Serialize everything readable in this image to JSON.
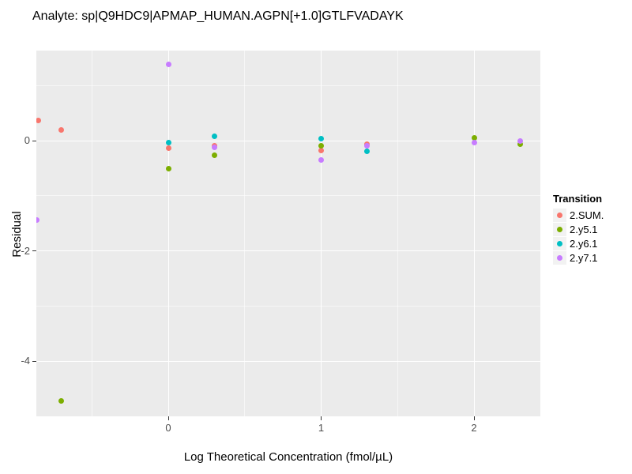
{
  "title": "Analyte: sp|Q9HDC9|APMAP_HUMAN.AGPN[+1.0]GTLFVADAYK",
  "axes": {
    "x_title": "Log Theoretical Concentration (fmol/µL)",
    "y_title": "Residual",
    "x_tick_labels": [
      "0",
      "1",
      "2"
    ],
    "y_tick_labels": [
      "0",
      "-2",
      "-4"
    ]
  },
  "legend": {
    "title": "Transition",
    "items": [
      {
        "label": "2.SUM.",
        "color": "#F8766D"
      },
      {
        "label": "2.y5.1",
        "color": "#7CAE00"
      },
      {
        "label": "2.y6.1",
        "color": "#00BFC4"
      },
      {
        "label": "2.y7.1",
        "color": "#C77CFF"
      }
    ]
  },
  "colors": {
    "panel_background": "#EBEBEB",
    "grid": "#FFFFFF",
    "legend_key_background": "#F2F2F2",
    "tick_label": "#4D4D4D"
  },
  "chart_data": {
    "type": "scatter",
    "title": "Analyte: sp|Q9HDC9|APMAP_HUMAN.AGPN[+1.0]GTLFVADAYK",
    "xlabel": "Log Theoretical Concentration (fmol/µL)",
    "ylabel": "Residual",
    "xlim": [
      -0.86,
      2.43
    ],
    "ylim": [
      -5.0,
      1.63
    ],
    "x_major_ticks": [
      0,
      1,
      2
    ],
    "y_major_ticks": [
      0,
      -2,
      -4
    ],
    "x_minor_ticks": [
      -0.5,
      0.5,
      1.5
    ],
    "y_minor_ticks": [
      1,
      -1,
      -3
    ],
    "grid": true,
    "legend_position": "right",
    "legend_title": "Transition",
    "series": [
      {
        "name": "2.SUM.",
        "color": "#F8766D",
        "points": [
          [
            -0.85,
            0.36
          ],
          [
            -0.7,
            0.19
          ],
          [
            0,
            -0.14
          ],
          [
            0.3,
            -0.1
          ],
          [
            1,
            -0.18
          ],
          [
            1.3,
            -0.06
          ]
        ]
      },
      {
        "name": "2.y5.1",
        "color": "#7CAE00",
        "points": [
          [
            -0.7,
            -4.73
          ],
          [
            0,
            -0.51
          ],
          [
            0.3,
            -0.27
          ],
          [
            1,
            -0.1
          ],
          [
            2,
            0.05
          ],
          [
            2.3,
            -0.06
          ]
        ]
      },
      {
        "name": "2.y6.1",
        "color": "#00BFC4",
        "points": [
          [
            0,
            -0.04
          ],
          [
            0.3,
            0.08
          ],
          [
            1,
            0.03
          ],
          [
            1.3,
            -0.2
          ]
        ]
      },
      {
        "name": "2.y7.1",
        "color": "#C77CFF",
        "points": [
          [
            -0.86,
            -1.44
          ],
          [
            0,
            1.39
          ],
          [
            0.3,
            -0.12
          ],
          [
            1,
            -0.35
          ],
          [
            1.3,
            -0.09
          ],
          [
            2,
            -0.04
          ],
          [
            2.3,
            -0.01
          ]
        ]
      }
    ]
  }
}
